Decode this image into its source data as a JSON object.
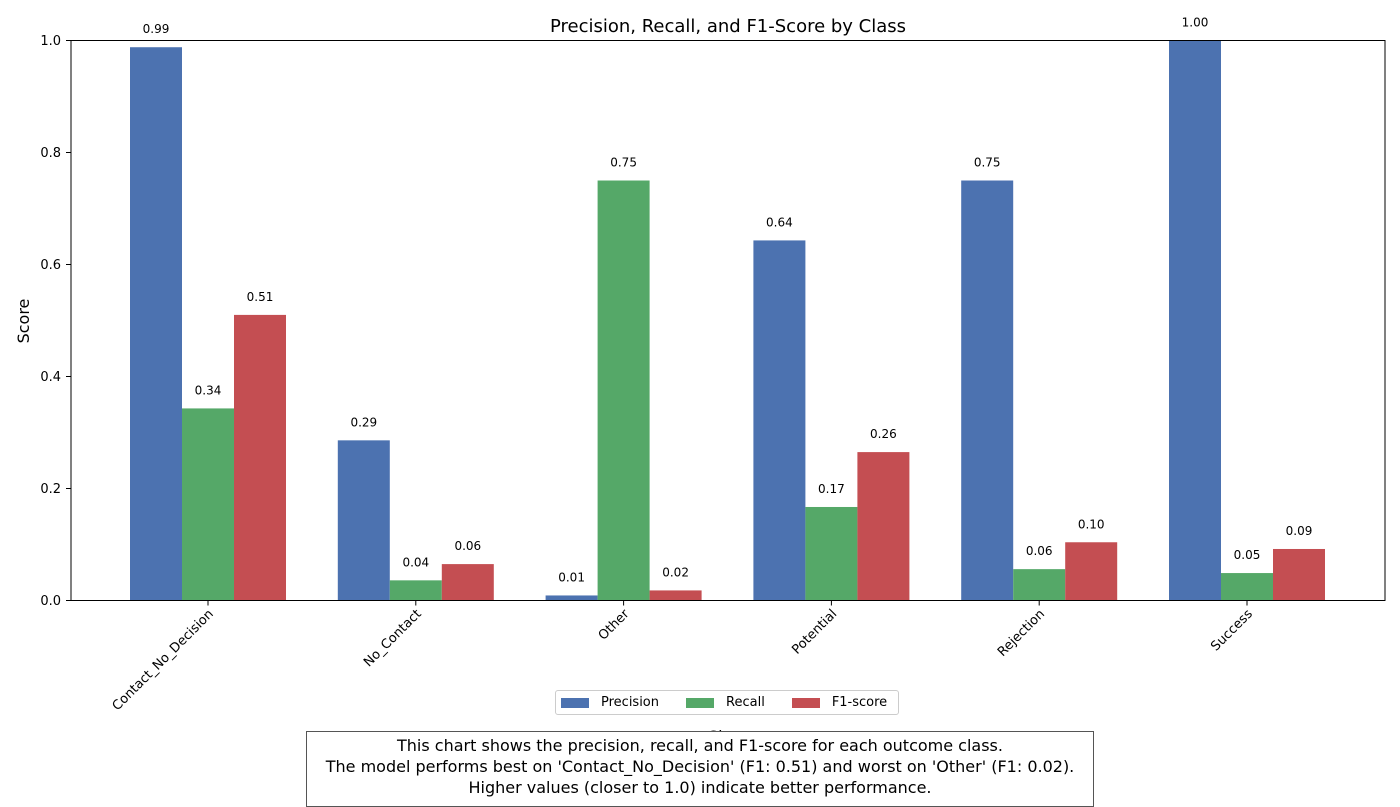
{
  "chart_data": {
    "type": "bar",
    "title": "Precision, Recall, and F1-Score by Class",
    "xlabel": "Class",
    "ylabel": "Score",
    "ylim": [
      0,
      1.0
    ],
    "yticks": [
      "0.0",
      "0.2",
      "0.4",
      "0.6",
      "0.8",
      "1.0"
    ],
    "categories": [
      "Contact_No_Decision",
      "No_Contact",
      "Other",
      "Potential",
      "Rejection",
      "Success"
    ],
    "series": [
      {
        "name": "Precision",
        "color": "#4c72b0",
        "values": [
          0.988,
          0.286,
          0.009,
          0.643,
          0.75,
          1.0
        ],
        "labels": [
          "0.99",
          "0.29",
          "0.01",
          "0.64",
          "0.75",
          "1.00"
        ]
      },
      {
        "name": "Recall",
        "color": "#55a868",
        "values": [
          0.343,
          0.036,
          0.75,
          0.167,
          0.056,
          0.049
        ],
        "labels": [
          "0.34",
          "0.04",
          "0.75",
          "0.17",
          "0.06",
          "0.05"
        ]
      },
      {
        "name": "F1-score",
        "color": "#c44e52",
        "values": [
          0.51,
          0.065,
          0.018,
          0.265,
          0.104,
          0.092
        ],
        "labels": [
          "0.51",
          "0.06",
          "0.02",
          "0.26",
          "0.10",
          "0.09"
        ]
      }
    ],
    "grid": false,
    "legend_position": "bottom-center"
  },
  "note": {
    "line1": "This chart shows the precision, recall, and F1-score for each outcome class.",
    "line2": "The model performs best on 'Contact_No_Decision' (F1: 0.51) and worst on 'Other' (F1: 0.02).",
    "line3": "Higher values (closer to 1.0) indicate better performance."
  }
}
